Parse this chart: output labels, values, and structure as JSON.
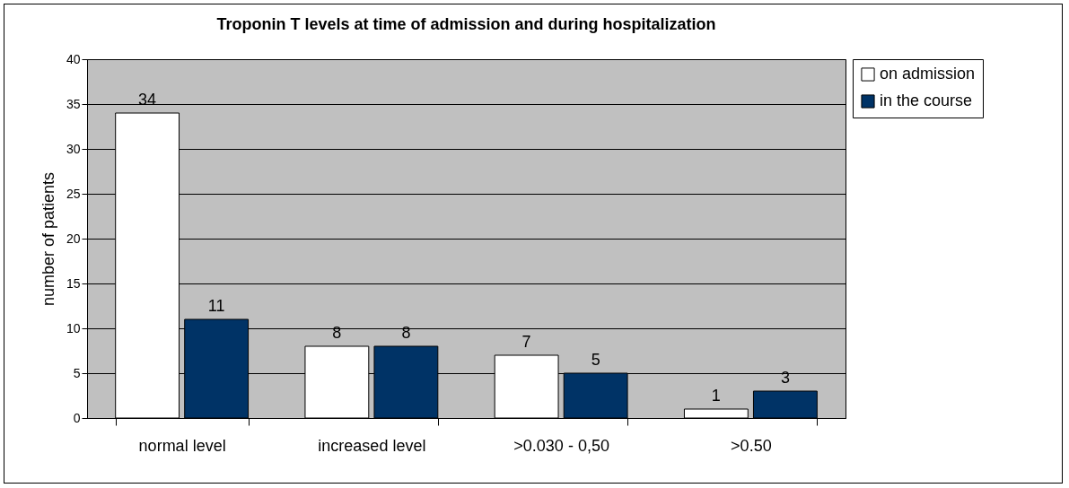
{
  "chart_data": {
    "type": "bar",
    "title": "Troponin T levels at time of admission and during hospitalization",
    "ylabel": "number of patients",
    "categories": [
      "normal level",
      "increased level",
      ">0.030 - 0,50",
      ">0.50"
    ],
    "series": [
      {
        "name": "on admission",
        "color": "#ffffff",
        "values": [
          34,
          8,
          7,
          1
        ]
      },
      {
        "name": "in the course",
        "color": "#003366",
        "values": [
          11,
          8,
          5,
          3
        ]
      }
    ],
    "ylim": [
      0,
      40
    ],
    "yticks": [
      0,
      5,
      10,
      15,
      20,
      25,
      30,
      35,
      40
    ],
    "grid": "y",
    "legend": "right",
    "data_labels": true
  }
}
